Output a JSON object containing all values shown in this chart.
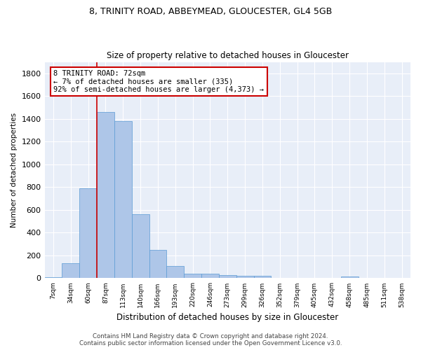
{
  "title1": "8, TRINITY ROAD, ABBEYMEAD, GLOUCESTER, GL4 5GB",
  "title2": "Size of property relative to detached houses in Gloucester",
  "xlabel": "Distribution of detached houses by size in Gloucester",
  "ylabel": "Number of detached properties",
  "footnote1": "Contains HM Land Registry data © Crown copyright and database right 2024.",
  "footnote2": "Contains public sector information licensed under the Open Government Licence v3.0.",
  "categories": [
    "7sqm",
    "34sqm",
    "60sqm",
    "87sqm",
    "113sqm",
    "140sqm",
    "166sqm",
    "193sqm",
    "220sqm",
    "246sqm",
    "273sqm",
    "299sqm",
    "326sqm",
    "352sqm",
    "379sqm",
    "405sqm",
    "432sqm",
    "458sqm",
    "485sqm",
    "511sqm",
    "538sqm"
  ],
  "values": [
    10,
    130,
    790,
    1460,
    1380,
    565,
    248,
    105,
    38,
    38,
    25,
    22,
    22,
    0,
    0,
    0,
    0,
    18,
    0,
    0,
    0
  ],
  "bar_color": "#aec6e8",
  "bar_edge_color": "#5b9bd5",
  "bg_color": "#e8eef8",
  "grid_color": "#ffffff",
  "vline_color": "#cc0000",
  "vline_pos": 2.5,
  "annotation_text": "8 TRINITY ROAD: 72sqm\n← 7% of detached houses are smaller (335)\n92% of semi-detached houses are larger (4,373) →",
  "annotation_box_color": "#cc0000",
  "ylim": [
    0,
    1900
  ],
  "yticks": [
    0,
    200,
    400,
    600,
    800,
    1000,
    1200,
    1400,
    1600,
    1800
  ]
}
